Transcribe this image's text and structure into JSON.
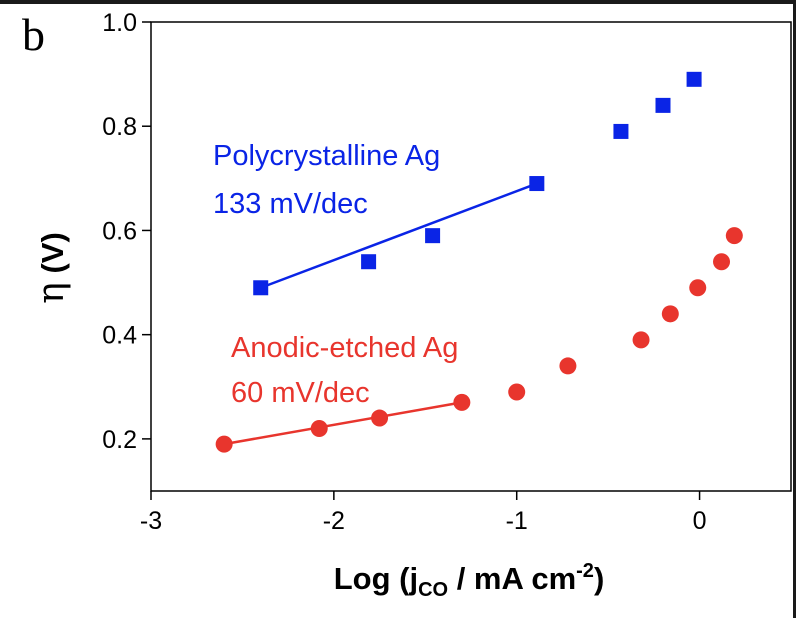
{
  "chart_data": {
    "type": "scatter",
    "panel_label": "b",
    "xlim": [
      -3,
      0.5
    ],
    "ylim": [
      0.1,
      1.0
    ],
    "x_ticks": [
      -3,
      -2,
      -1,
      0
    ],
    "x_tick_labels": [
      "-3",
      "-2",
      "-1",
      "0"
    ],
    "y_ticks": [
      0.2,
      0.4,
      0.6,
      0.8,
      1.0
    ],
    "y_tick_labels": [
      "0.2",
      "0.4",
      "0.6",
      "0.8",
      "1.0"
    ],
    "ylabel": {
      "greek": "η",
      "rest": " (V)"
    },
    "xlabel": {
      "pre": "Log (j",
      "sub": "CO",
      "mid": " / mA cm",
      "sup": "-2",
      "post": ")"
    },
    "grid": false,
    "series": [
      {
        "marker": "square",
        "color": "#0a24e6",
        "label_line1": "Polycrystalline Ag",
        "label_line2": "133 mV/dec",
        "points": [
          [
            -2.4,
            0.49
          ],
          [
            -1.81,
            0.54
          ],
          [
            -1.46,
            0.59
          ],
          [
            -0.89,
            0.69
          ],
          [
            -0.43,
            0.79
          ],
          [
            -0.2,
            0.84
          ],
          [
            -0.03,
            0.89
          ]
        ],
        "fit": [
          [
            -2.4,
            0.49
          ],
          [
            -0.89,
            0.69
          ]
        ]
      },
      {
        "marker": "circle",
        "color": "#e8352d",
        "label_line1": "Anodic-etched Ag",
        "label_line2": "60 mV/dec",
        "points": [
          [
            -2.6,
            0.19
          ],
          [
            -2.08,
            0.22
          ],
          [
            -1.75,
            0.24
          ],
          [
            -1.3,
            0.27
          ],
          [
            -1.0,
            0.29
          ],
          [
            -0.72,
            0.34
          ],
          [
            -0.32,
            0.39
          ],
          [
            -0.16,
            0.44
          ],
          [
            -0.01,
            0.49
          ],
          [
            0.12,
            0.54
          ],
          [
            0.19,
            0.59
          ]
        ],
        "fit": [
          [
            -2.6,
            0.19
          ],
          [
            -1.3,
            0.27
          ]
        ]
      }
    ]
  }
}
